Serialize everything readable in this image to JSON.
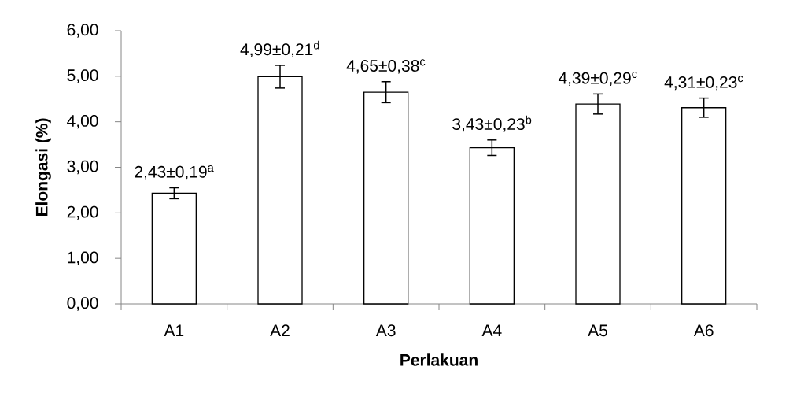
{
  "chart_data": {
    "type": "bar",
    "xlabel": "Perlakuan",
    "ylabel": "Elongasi (%)",
    "categories": [
      "A1",
      "A2",
      "A3",
      "A4",
      "A5",
      "A6"
    ],
    "values": [
      2.43,
      4.99,
      4.65,
      3.43,
      4.39,
      4.31
    ],
    "errors": [
      0.12,
      0.25,
      0.23,
      0.17,
      0.22,
      0.21
    ],
    "value_labels": [
      "2,43±0,19$^{a}$",
      "4,99±0,21$^{d}$",
      "4,65±0,38$^{c}$",
      "3,43±0,23$^{b}$",
      "4,39±0,29$^{c}$",
      "4,31±0,23$^{c}$"
    ],
    "color": "#ffffff",
    "ylim": [
      0,
      6
    ],
    "yticks": [
      {
        "value": 0,
        "label": "0,00"
      },
      {
        "value": 1,
        "label": "1,00"
      },
      {
        "value": 2,
        "label": "2,00"
      },
      {
        "value": 3,
        "label": "3,00"
      },
      {
        "value": 4,
        "label": "4,00"
      },
      {
        "value": 5,
        "label": "5,00"
      },
      {
        "value": 6,
        "label": "6,00"
      }
    ]
  }
}
